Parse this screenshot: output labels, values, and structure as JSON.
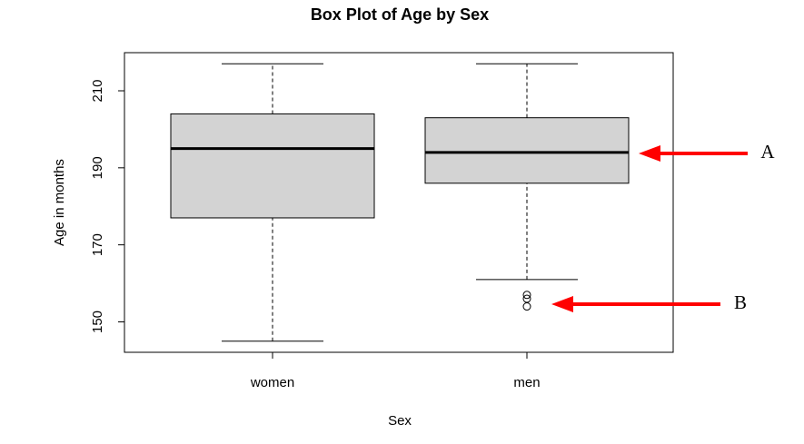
{
  "chart_data": {
    "type": "box",
    "title": "Box Plot of Age by Sex",
    "xlabel": "Sex",
    "ylabel": "Age in months",
    "categories": [
      "women",
      "men"
    ],
    "boxes": [
      {
        "whisker_low": 145,
        "q1": 177,
        "median": 195,
        "q3": 204,
        "whisker_high": 217,
        "outliers": []
      },
      {
        "whisker_low": 161,
        "q1": 186,
        "median": 194,
        "q3": 203,
        "whisker_high": 217,
        "outliers": [
          157,
          156,
          154
        ]
      }
    ],
    "color": "#d3d3d3",
    "ylim": [
      142.1,
      219.9
    ],
    "yticks": [
      150,
      170,
      190,
      210
    ],
    "annotations": [
      {
        "text": "A"
      },
      {
        "text": "B"
      }
    ],
    "annotation_color": "#ff0000"
  }
}
